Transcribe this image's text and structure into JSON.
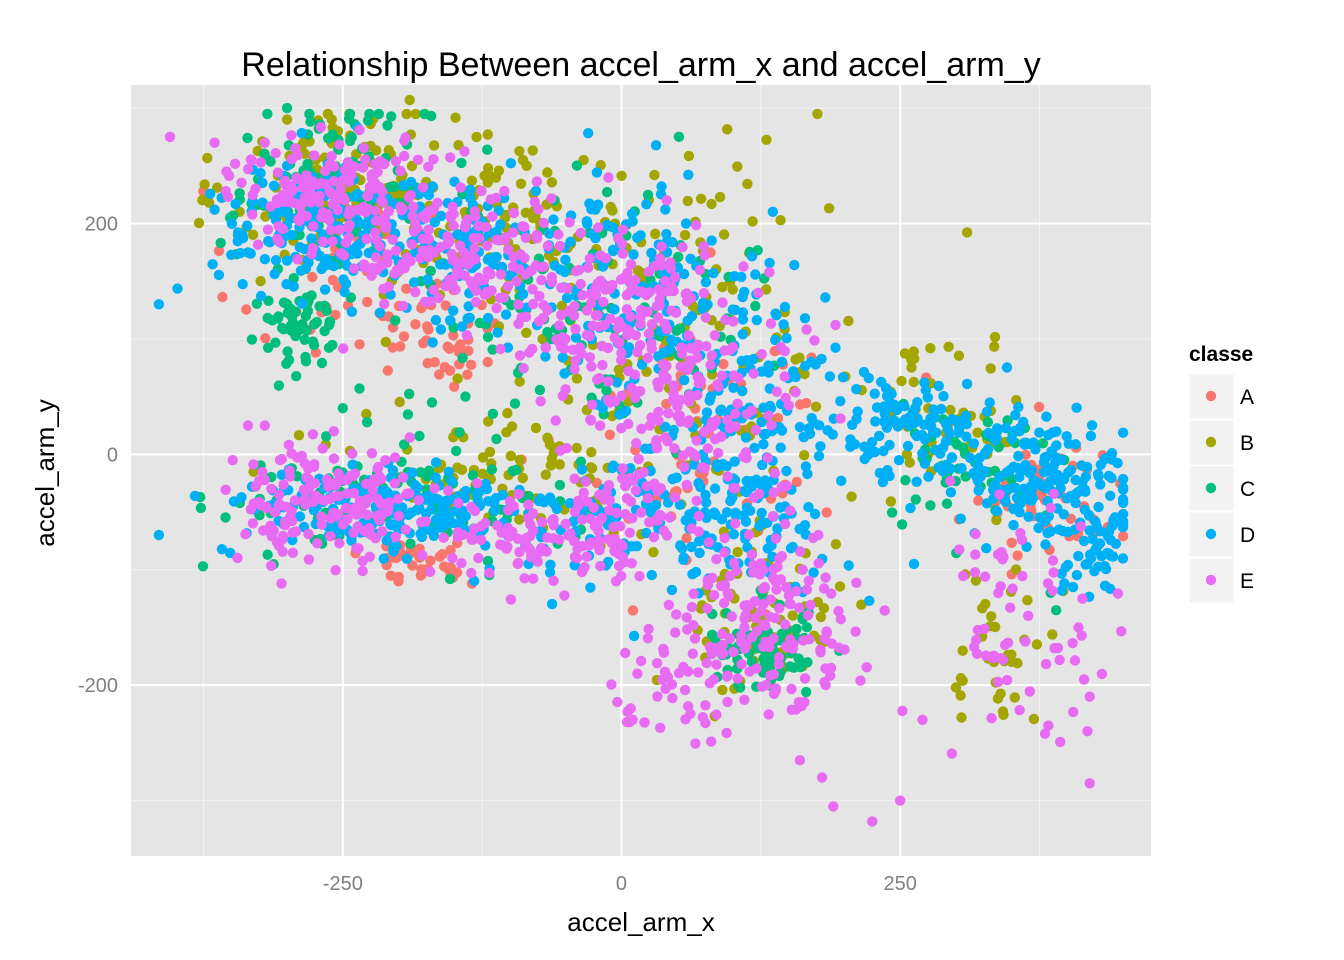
{
  "colors": {
    "panel": "#E5E5E5",
    "grid_major": "#FFFFFF",
    "grid_minor": "#F2F2F2",
    "tick_text": "#7F7F7F",
    "legend_key_bg": "#F2F2F2"
  },
  "chart_data": {
    "type": "scatter",
    "title": "Relationship Between accel_arm_x and accel_arm_y",
    "xlabel": "accel_arm_x",
    "ylabel": "accel_arm_y",
    "xlim": [
      -440,
      475
    ],
    "ylim": [
      -348,
      320
    ],
    "x_ticks": [
      -250,
      0,
      250
    ],
    "x_tick_labels": [
      "-250",
      "0",
      "250"
    ],
    "y_ticks": [
      -200,
      0,
      200
    ],
    "y_tick_labels": [
      "-200",
      "0",
      "200"
    ],
    "x_minor_ticks": [
      -375,
      -125,
      125,
      375
    ],
    "y_minor_ticks": [
      -300,
      -100,
      100,
      300
    ],
    "grid": true,
    "legend_title": "classe",
    "legend_position": "right",
    "series": [
      {
        "name": "A",
        "color": "#F8766D",
        "clusters": [
          {
            "cx": -230,
            "cy": 150,
            "sx": 60,
            "sy": 40,
            "n": 60
          },
          {
            "cx": -180,
            "cy": -90,
            "sx": 25,
            "sy": 12,
            "n": 40
          },
          {
            "cx": -155,
            "cy": 90,
            "sx": 20,
            "sy": 15,
            "n": 20
          },
          {
            "cx": 80,
            "cy": 20,
            "sx": 60,
            "sy": 60,
            "n": 60
          },
          {
            "cx": 380,
            "cy": -40,
            "sx": 40,
            "sy": 30,
            "n": 50
          }
        ],
        "points": [
          [
            -300,
            130
          ],
          [
            -205,
            110
          ],
          [
            -120,
            80
          ],
          [
            -200,
            -110
          ],
          [
            -180,
            -105
          ],
          [
            -155,
            -100
          ],
          [
            405,
            -10
          ],
          [
            415,
            -45
          ]
        ]
      },
      {
        "name": "B",
        "color": "#A3A500",
        "clusters": [
          {
            "cx": -250,
            "cy": 230,
            "sx": 50,
            "sy": 35,
            "n": 120
          },
          {
            "cx": -120,
            "cy": 200,
            "sx": 60,
            "sy": 35,
            "n": 90
          },
          {
            "cx": -100,
            "cy": -10,
            "sx": 70,
            "sy": 25,
            "n": 80
          },
          {
            "cx": 50,
            "cy": 100,
            "sx": 90,
            "sy": 90,
            "n": 150
          },
          {
            "cx": 130,
            "cy": -140,
            "sx": 30,
            "sy": 35,
            "n": 70
          },
          {
            "cx": 300,
            "cy": 40,
            "sx": 40,
            "sy": 30,
            "n": 40
          },
          {
            "cx": 340,
            "cy": -160,
            "sx": 25,
            "sy": 40,
            "n": 35
          }
        ],
        "points": [
          [
            -190,
            307
          ],
          [
            -130,
            275
          ],
          [
            -85,
            250
          ],
          [
            -260,
            290
          ],
          [
            -300,
            290
          ],
          [
            -330,
            -15
          ],
          [
            -330,
            -28
          ],
          [
            260,
            82
          ],
          [
            300,
            -202
          ],
          [
            305,
            -228
          ]
        ]
      },
      {
        "name": "C",
        "color": "#00BF7D",
        "clusters": [
          {
            "cx": -290,
            "cy": 110,
            "sx": 18,
            "sy": 18,
            "n": 60
          },
          {
            "cx": -260,
            "cy": 230,
            "sx": 45,
            "sy": 35,
            "n": 120
          },
          {
            "cx": -200,
            "cy": -40,
            "sx": 80,
            "sy": 25,
            "n": 110
          },
          {
            "cx": -30,
            "cy": 130,
            "sx": 80,
            "sy": 60,
            "n": 110
          },
          {
            "cx": 130,
            "cy": -170,
            "sx": 25,
            "sy": 20,
            "n": 70
          },
          {
            "cx": 320,
            "cy": -10,
            "sx": 40,
            "sy": 25,
            "n": 50
          }
        ],
        "points": [
          [
            -300,
            300
          ],
          [
            -280,
            295
          ],
          [
            -235,
            57
          ],
          [
            -250,
            40
          ],
          [
            -170,
            45
          ],
          [
            -140,
            50
          ],
          [
            385,
            -120
          ],
          [
            390,
            -135
          ]
        ]
      },
      {
        "name": "D",
        "color": "#00B0F6",
        "clusters": [
          {
            "cx": -270,
            "cy": 200,
            "sx": 50,
            "sy": 25,
            "n": 150
          },
          {
            "cx": -150,
            "cy": 170,
            "sx": 60,
            "sy": 30,
            "n": 140
          },
          {
            "cx": 0,
            "cy": 150,
            "sx": 50,
            "sy": 50,
            "n": 120
          },
          {
            "cx": -200,
            "cy": -50,
            "sx": 80,
            "sy": 20,
            "n": 200
          },
          {
            "cx": 50,
            "cy": -60,
            "sx": 80,
            "sy": 30,
            "n": 160
          },
          {
            "cx": 110,
            "cy": 40,
            "sx": 50,
            "sy": 60,
            "n": 160
          },
          {
            "cx": 270,
            "cy": 20,
            "sx": 40,
            "sy": 20,
            "n": 120
          },
          {
            "cx": 380,
            "cy": -20,
            "sx": 40,
            "sy": 25,
            "n": 160
          },
          {
            "cx": 430,
            "cy": -80,
            "sx": 15,
            "sy": 20,
            "n": 50
          }
        ],
        "points": [
          [
            -365,
            212
          ],
          [
            -340,
            190
          ],
          [
            -335,
            175
          ],
          [
            -300,
            250
          ],
          [
            405,
            -115
          ],
          [
            395,
            -118
          ]
        ]
      },
      {
        "name": "E",
        "color": "#E76BF3",
        "clusters": [
          {
            "cx": -270,
            "cy": 230,
            "sx": 40,
            "sy": 25,
            "n": 140
          },
          {
            "cx": -150,
            "cy": 180,
            "sx": 60,
            "sy": 30,
            "n": 180
          },
          {
            "cx": -10,
            "cy": 130,
            "sx": 40,
            "sy": 30,
            "n": 120
          },
          {
            "cx": -270,
            "cy": -40,
            "sx": 40,
            "sy": 25,
            "n": 160
          },
          {
            "cx": -50,
            "cy": -70,
            "sx": 60,
            "sy": 20,
            "n": 150
          },
          {
            "cx": 60,
            "cy": 50,
            "sx": 60,
            "sy": 50,
            "n": 200
          },
          {
            "cx": 130,
            "cy": -140,
            "sx": 40,
            "sy": 40,
            "n": 150
          },
          {
            "cx": 60,
            "cy": -180,
            "sx": 30,
            "sy": 30,
            "n": 50
          },
          {
            "cx": 360,
            "cy": -150,
            "sx": 40,
            "sy": 60,
            "n": 60
          }
        ],
        "points": [
          [
            -405,
            275
          ],
          [
            -365,
            270
          ],
          [
            -355,
            228
          ],
          [
            -320,
            270
          ],
          [
            -335,
            25
          ],
          [
            -320,
            25
          ],
          [
            -305,
            -112
          ],
          [
            160,
            -265
          ],
          [
            180,
            -280
          ],
          [
            190,
            -305
          ],
          [
            225,
            -318
          ],
          [
            250,
            -300
          ],
          [
            420,
            -285
          ],
          [
            418,
            -240
          ],
          [
            420,
            -210
          ],
          [
            415,
            -195
          ],
          [
            380,
            -242
          ],
          [
            383,
            -235
          ],
          [
            410,
            -150
          ],
          [
            270,
            -230
          ],
          [
            5,
            -232
          ],
          [
            10,
            -230
          ],
          [
            -40,
            -90
          ]
        ]
      }
    ]
  }
}
